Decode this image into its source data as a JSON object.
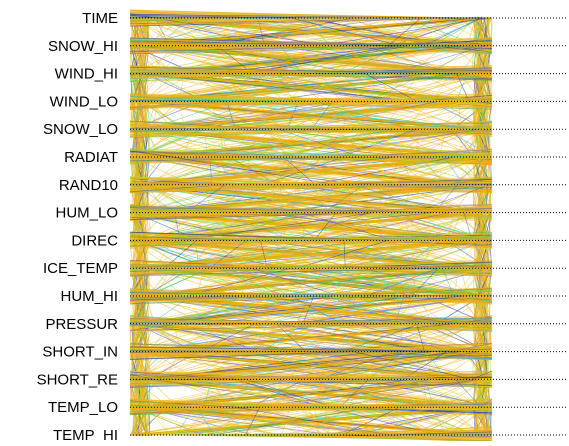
{
  "chart_data": {
    "type": "line",
    "chart_kind": "parallel coordinates",
    "title": "",
    "xlabel": "",
    "ylabel": "",
    "grid": false,
    "legend": "none",
    "axes": [
      "TIME",
      "SNOW_HI",
      "WIND_HI",
      "WIND_LO",
      "SNOW_LO",
      "RADIAT",
      "RAND10",
      "HUM_LO",
      "DIREC",
      "ICE_TEMP",
      "HUM_HI",
      "PRESSUR",
      "SHORT_IN",
      "SHORT_RE",
      "TEMP_LO",
      "TEMP_HI"
    ],
    "panels": [
      "left",
      "right"
    ],
    "color_scale": [
      "#0a1fb0",
      "#1f4fe6",
      "#12b8d8",
      "#22c84c",
      "#9ed82a",
      "#e6e033",
      "#f0b018"
    ],
    "dominant_color": "#f0b018",
    "axis_line_style": "dotted",
    "axis_line_color": "#000000",
    "label_color": "#000000",
    "background_color": "#ffffff"
  }
}
